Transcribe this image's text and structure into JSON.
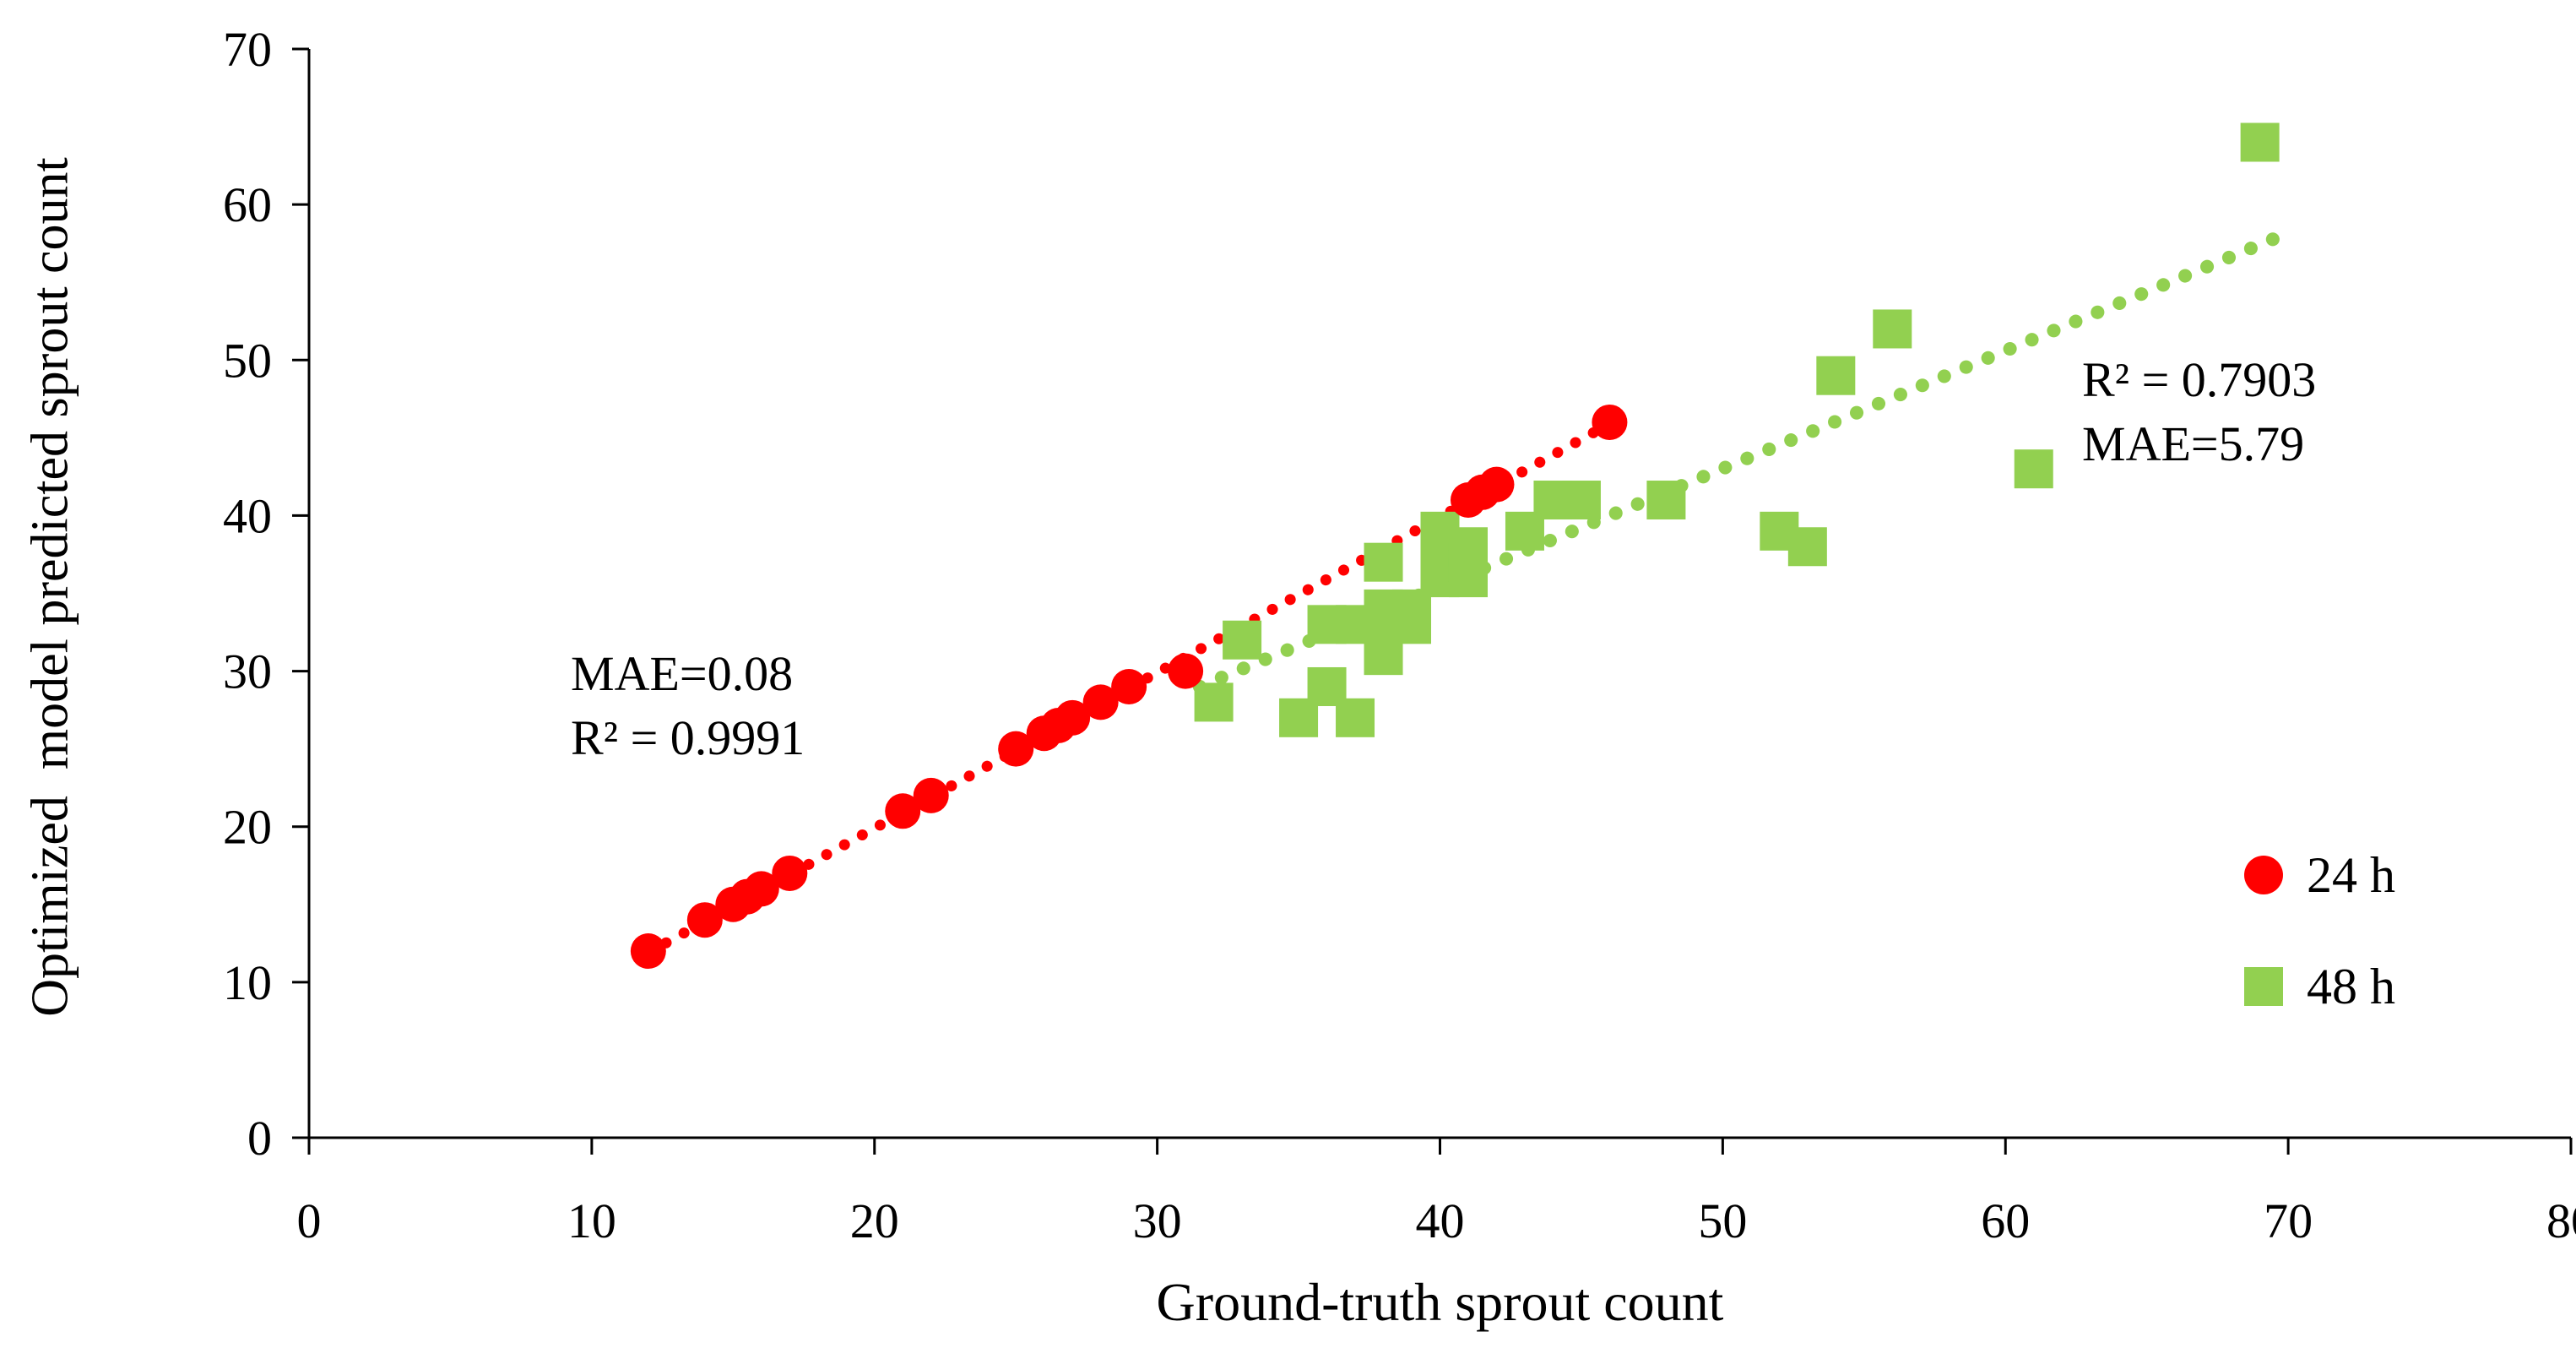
{
  "chart_data": {
    "type": "scatter",
    "title": "",
    "xlabel": "Ground-truth sprout count",
    "ylabel": "Optimized  model predicted sprout count",
    "xlim": [
      0,
      80
    ],
    "ylim": [
      0,
      70
    ],
    "x_tick_step": 10,
    "y_tick_step": 10,
    "grid": false,
    "legend_position": "lower-right-inside",
    "series": [
      {
        "name": "24 h",
        "marker": "circle",
        "color": "#ff0000",
        "points": [
          [
            12,
            12
          ],
          [
            14,
            14
          ],
          [
            15,
            15
          ],
          [
            15.5,
            15.5
          ],
          [
            16,
            16
          ],
          [
            17,
            17
          ],
          [
            21,
            21
          ],
          [
            22,
            22
          ],
          [
            25,
            25
          ],
          [
            26,
            26
          ],
          [
            26.5,
            26.5
          ],
          [
            27,
            27
          ],
          [
            28,
            28
          ],
          [
            29,
            29
          ],
          [
            31,
            30
          ],
          [
            41,
            41
          ],
          [
            41.5,
            41.5
          ],
          [
            42,
            42
          ],
          [
            46,
            46
          ]
        ],
        "trendline": {
          "style": "dotted",
          "x1": 12,
          "y1": 11.9,
          "x2": 46,
          "y2": 45.9
        },
        "stats": {
          "mae": "MAE=0.08",
          "r2": "R² = 0.9991"
        }
      },
      {
        "name": "48 h",
        "marker": "square",
        "color": "#92d050",
        "points": [
          [
            32,
            28
          ],
          [
            33,
            32
          ],
          [
            35,
            27
          ],
          [
            36,
            29
          ],
          [
            36,
            33
          ],
          [
            37,
            27
          ],
          [
            37,
            33
          ],
          [
            38,
            31
          ],
          [
            38,
            33
          ],
          [
            38,
            34
          ],
          [
            38,
            37
          ],
          [
            39,
            33
          ],
          [
            39,
            34
          ],
          [
            40,
            36
          ],
          [
            40,
            37
          ],
          [
            40,
            38
          ],
          [
            40,
            39
          ],
          [
            41,
            36
          ],
          [
            41,
            37
          ],
          [
            41,
            38
          ],
          [
            43,
            39
          ],
          [
            44,
            41
          ],
          [
            45,
            41
          ],
          [
            48,
            41
          ],
          [
            52,
            39
          ],
          [
            53,
            38
          ],
          [
            54,
            49
          ],
          [
            56,
            52
          ],
          [
            61,
            43
          ],
          [
            69,
            64
          ]
        ],
        "trendline": {
          "style": "dotted",
          "x1": 31.5,
          "y1": 29,
          "x2": 69.5,
          "y2": 57.8
        },
        "stats": {
          "r2": "R² = 0.7903",
          "mae": "MAE=5.79"
        }
      }
    ],
    "annotations": [
      {
        "lines": [
          "MAE=0.08",
          "R² = 0.9991"
        ],
        "refers_to": "24 h"
      },
      {
        "lines": [
          "R² = 0.7903",
          "MAE=5.79"
        ],
        "refers_to": "48 h"
      }
    ],
    "legend": [
      {
        "label": "24 h",
        "marker": "circle",
        "color": "#ff0000"
      },
      {
        "label": "48 h",
        "marker": "square",
        "color": "#92d050"
      }
    ],
    "x_ticks": [
      0,
      10,
      20,
      30,
      40,
      50,
      60,
      70,
      80
    ],
    "y_ticks": [
      0,
      10,
      20,
      30,
      40,
      50,
      60,
      70
    ]
  }
}
